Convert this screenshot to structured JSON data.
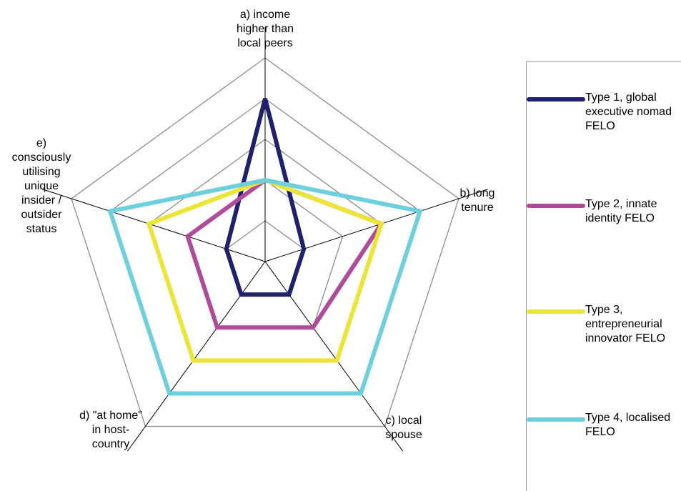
{
  "chart_data": {
    "type": "radar",
    "axes": [
      {
        "key": "a",
        "label": "a) income\nhigher than\nlocal peers"
      },
      {
        "key": "b",
        "label": "b) long\ntenure"
      },
      {
        "key": "c",
        "label": "c) local\nspouse"
      },
      {
        "key": "d",
        "label": "d) \"at home\"\nin host-\ncountry"
      },
      {
        "key": "e",
        "label": "e)\nconsciously\nutilising\nunique\ninsider /\noutsider\nstatus"
      }
    ],
    "range": [
      0,
      5
    ],
    "grid_levels": [
      1,
      2,
      3,
      4,
      5
    ],
    "series": [
      {
        "name": "Type 1, global executive nomad FELO",
        "color": "#1f216e",
        "values": [
          4,
          1,
          1,
          1,
          1
        ]
      },
      {
        "name": "Type 2, innate identity FELO",
        "color": "#b04a9b",
        "values": [
          2,
          3,
          2,
          2,
          2
        ]
      },
      {
        "name": "Type 3, entrepreneurial innovator FELO",
        "color": "#ece535",
        "values": [
          2,
          3,
          3,
          3,
          3
        ]
      },
      {
        "name": "Type 4, localised FELO",
        "color": "#6ecfdd",
        "values": [
          2,
          4,
          4,
          4,
          4
        ]
      }
    ]
  }
}
